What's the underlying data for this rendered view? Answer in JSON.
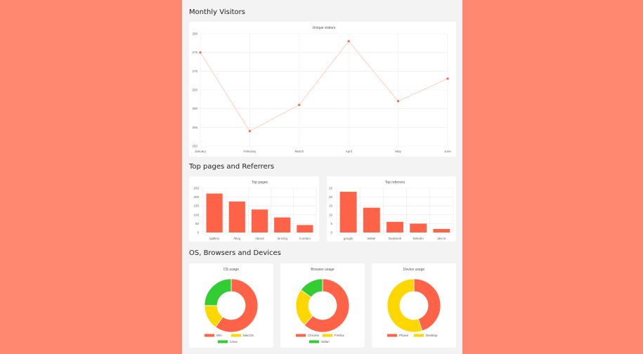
{
  "sections": {
    "visitors": "Monthly Visitors",
    "pages": "Top pages and Referrers",
    "devices": "OS, Browsers and Devices"
  },
  "colors": {
    "red": "#ff6347",
    "yellow": "#ffd700",
    "green": "#32cd32",
    "line": "#ffc2b4"
  },
  "chart_data": [
    {
      "type": "line",
      "title": "Unique visitors",
      "categories": [
        "January",
        "February",
        "March",
        "April",
        "May",
        "June"
      ],
      "values": [
        275,
        254,
        261,
        278,
        262,
        268
      ],
      "ylim": [
        250,
        280
      ],
      "yticks": [
        250,
        255,
        260,
        265,
        270,
        275,
        280
      ],
      "grid": true
    },
    {
      "type": "bar",
      "title": "Top pages",
      "categories": [
        "/gallery",
        "/blog",
        "/about",
        "/pricing",
        "/contact"
      ],
      "values": [
        220,
        175,
        130,
        85,
        42
      ],
      "ylim": [
        0,
        250
      ],
      "yticks": [
        0,
        50,
        100,
        150,
        200,
        250
      ]
    },
    {
      "type": "bar",
      "title": "Top referrers",
      "categories": [
        "google",
        "twitter",
        "facebook",
        "linkedin",
        "dev.to"
      ],
      "values": [
        23,
        14,
        6,
        5,
        2
      ],
      "ylim": [
        0,
        25
      ],
      "yticks": [
        0,
        5,
        10,
        15,
        20,
        25
      ]
    },
    {
      "type": "pie",
      "title": "OS usage",
      "labels": [
        "Win",
        "MacOS",
        "Linux"
      ],
      "values": [
        60,
        15,
        25
      ],
      "colors": [
        "#ff6347",
        "#ffd700",
        "#32cd32"
      ]
    },
    {
      "type": "pie",
      "title": "Browser usage",
      "labels": [
        "Chrome",
        "Firefox",
        "Safari"
      ],
      "values": [
        62,
        23,
        15
      ],
      "colors": [
        "#ff6347",
        "#ffd700",
        "#32cd32"
      ]
    },
    {
      "type": "pie",
      "title": "Device usage",
      "labels": [
        "Phone",
        "Desktop"
      ],
      "values": [
        45,
        55
      ],
      "colors": [
        "#ff6347",
        "#ffd700"
      ]
    }
  ]
}
